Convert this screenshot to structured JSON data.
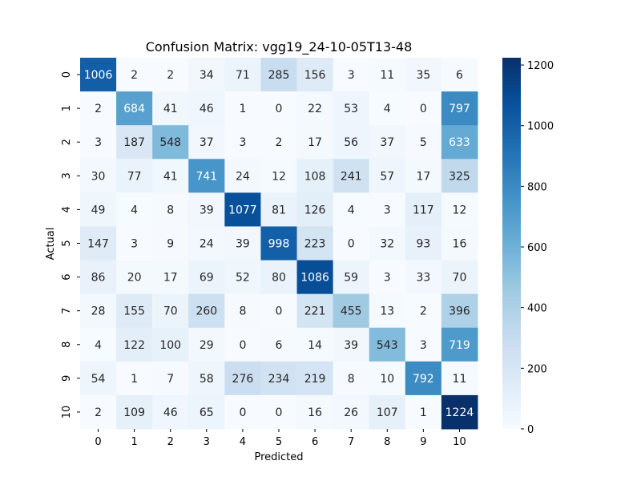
{
  "chart_data": {
    "type": "heatmap",
    "title": "Confusion Matrix: vgg19_24-10-05T13-48",
    "xlabel": "Predicted",
    "ylabel": "Actual",
    "x_labels": [
      "0",
      "1",
      "2",
      "3",
      "4",
      "5",
      "6",
      "7",
      "8",
      "9",
      "10"
    ],
    "y_labels": [
      "0",
      "1",
      "2",
      "3",
      "4",
      "5",
      "6",
      "7",
      "8",
      "9",
      "10"
    ],
    "matrix": [
      [
        1006,
        2,
        2,
        34,
        71,
        285,
        156,
        3,
        11,
        35,
        6
      ],
      [
        2,
        684,
        41,
        46,
        1,
        0,
        22,
        53,
        4,
        0,
        797
      ],
      [
        3,
        187,
        548,
        37,
        3,
        2,
        17,
        56,
        37,
        5,
        633
      ],
      [
        30,
        77,
        41,
        741,
        24,
        12,
        108,
        241,
        57,
        17,
        325
      ],
      [
        49,
        4,
        8,
        39,
        1077,
        81,
        126,
        4,
        3,
        117,
        12
      ],
      [
        147,
        3,
        9,
        24,
        39,
        998,
        223,
        0,
        32,
        93,
        16
      ],
      [
        86,
        20,
        17,
        69,
        52,
        80,
        1086,
        59,
        3,
        33,
        70
      ],
      [
        28,
        155,
        70,
        260,
        8,
        0,
        221,
        455,
        13,
        2,
        396
      ],
      [
        4,
        122,
        100,
        29,
        0,
        6,
        14,
        39,
        543,
        3,
        719
      ],
      [
        54,
        1,
        7,
        58,
        276,
        234,
        219,
        8,
        10,
        792,
        11
      ],
      [
        2,
        109,
        46,
        65,
        0,
        0,
        16,
        26,
        107,
        1,
        1224
      ]
    ],
    "colormap": "Blues",
    "vmin": 0,
    "vmax": 1224,
    "colorbar_ticks": [
      0,
      200,
      400,
      600,
      800,
      1000,
      1200
    ],
    "grid": false
  }
}
